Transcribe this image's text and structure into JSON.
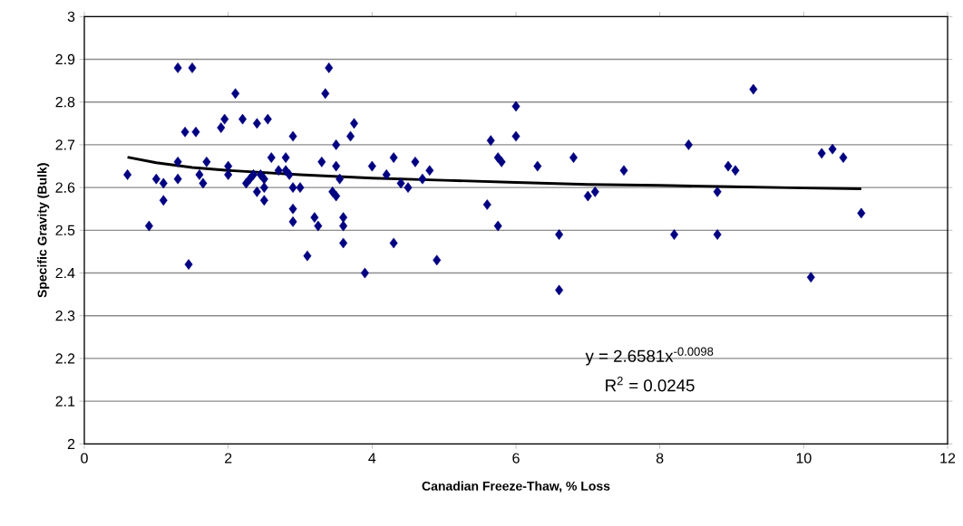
{
  "chart_data": {
    "type": "scatter",
    "xlabel": "Canadian Freeze-Thaw, % Loss",
    "ylabel": "Specific Gravity (Bulk)",
    "xlim": [
      0,
      12
    ],
    "xticks": [
      0,
      2,
      4,
      6,
      8,
      10,
      12
    ],
    "ylim": [
      2,
      3
    ],
    "yticks": [
      2,
      2.1,
      2.2,
      2.3,
      2.4,
      2.5,
      2.6,
      2.7,
      2.8,
      2.9,
      3
    ],
    "grid": "y",
    "marker": "diamond",
    "annotations": [
      "y = 2.6581x$^{-0.0098}$",
      "R$^{2}$ = 0.0245"
    ],
    "series": [
      {
        "color": "#000080",
        "x": [
          0.6,
          0.9,
          1.0,
          1.1,
          1.1,
          1.3,
          1.3,
          1.3,
          1.4,
          1.45,
          1.5,
          1.55,
          1.6,
          1.65,
          1.7,
          1.9,
          1.95,
          2.0,
          2.0,
          2.1,
          2.2,
          2.25,
          2.3,
          2.35,
          2.4,
          2.4,
          2.45,
          2.5,
          2.5,
          2.5,
          2.55,
          2.6,
          2.7,
          2.8,
          2.8,
          2.85,
          2.9,
          2.9,
          2.9,
          2.9,
          3.0,
          3.1,
          3.2,
          3.25,
          3.3,
          3.35,
          3.4,
          3.45,
          3.5,
          3.5,
          3.5,
          3.55,
          3.6,
          3.6,
          3.6,
          3.7,
          3.75,
          3.9,
          4.0,
          4.2,
          4.3,
          4.3,
          4.4,
          4.5,
          4.6,
          4.7,
          4.8,
          4.9,
          5.6,
          5.65,
          5.75,
          5.75,
          5.8,
          6.0,
          6.0,
          6.3,
          6.6,
          6.6,
          6.8,
          7.0,
          7.1,
          7.5,
          8.2,
          8.4,
          8.8,
          8.8,
          8.95,
          9.05,
          9.3,
          10.1,
          10.25,
          10.4,
          10.55,
          10.8
        ],
        "values": [
          2.63,
          2.51,
          2.62,
          2.61,
          2.57,
          2.88,
          2.66,
          2.62,
          2.73,
          2.42,
          2.88,
          2.73,
          2.63,
          2.61,
          2.66,
          2.74,
          2.76,
          2.65,
          2.63,
          2.82,
          2.76,
          2.61,
          2.62,
          2.63,
          2.75,
          2.59,
          2.63,
          2.6,
          2.57,
          2.62,
          2.76,
          2.67,
          2.64,
          2.67,
          2.64,
          2.63,
          2.72,
          2.6,
          2.55,
          2.52,
          2.6,
          2.44,
          2.53,
          2.51,
          2.66,
          2.82,
          2.88,
          2.59,
          2.7,
          2.65,
          2.58,
          2.62,
          2.53,
          2.51,
          2.47,
          2.72,
          2.75,
          2.4,
          2.65,
          2.63,
          2.67,
          2.47,
          2.61,
          2.6,
          2.66,
          2.62,
          2.64,
          2.43,
          2.56,
          2.71,
          2.51,
          2.67,
          2.66,
          2.72,
          2.79,
          2.65,
          2.49,
          2.36,
          2.67,
          2.58,
          2.59,
          2.64,
          2.49,
          2.7,
          2.49,
          2.59,
          2.65,
          2.64,
          2.83,
          2.39,
          2.68,
          2.69,
          2.67,
          2.54
        ]
      },
      {
        "type": "line",
        "color": "#000000",
        "marker": "none",
        "x": [
          0.6,
          1,
          1.5,
          2,
          3,
          4,
          5,
          6,
          7,
          8,
          9,
          10,
          10.8
        ],
        "values": [
          2.671,
          2.658,
          2.647,
          2.64,
          2.63,
          2.622,
          2.617,
          2.612,
          2.607,
          2.605,
          2.602,
          2.599,
          2.597
        ]
      }
    ]
  }
}
